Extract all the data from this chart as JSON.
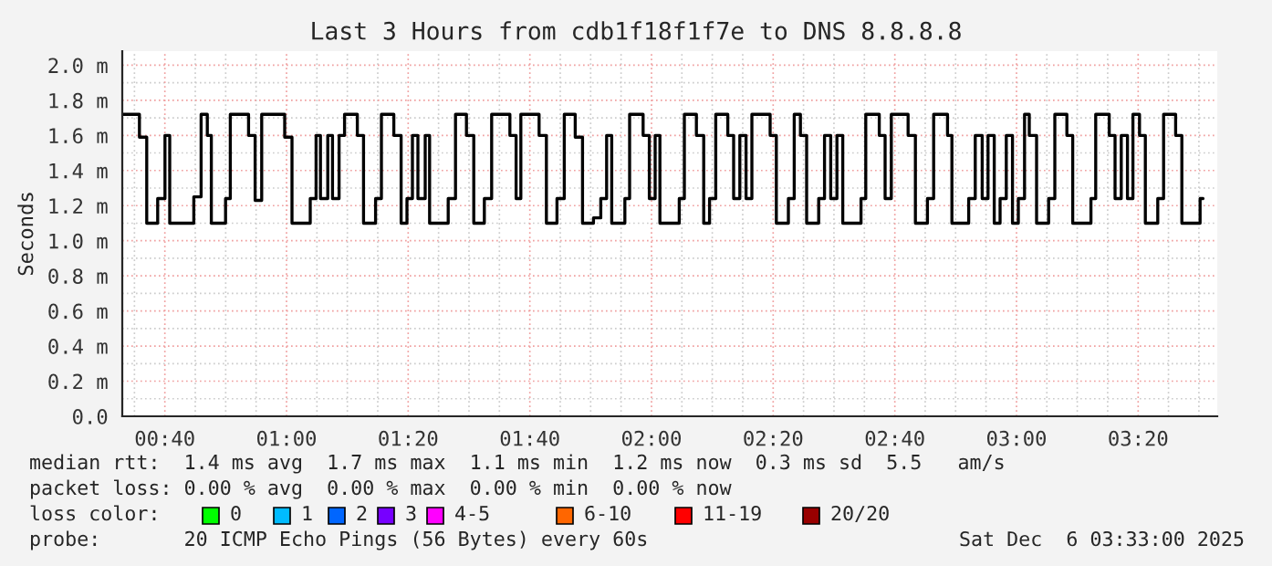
{
  "chart_data": {
    "type": "step",
    "title": "Last 3 Hours from cdb1f18f1f7e to DNS 8.8.8.8",
    "ylabel": "Seconds",
    "x": [
      0.551,
      0.597,
      0.617,
      0.647,
      0.667,
      0.68,
      0.746,
      0.766,
      0.783,
      0.794,
      0.833,
      0.846,
      0.896,
      0.914,
      0.932,
      0.995,
      1.015,
      1.065,
      1.081,
      1.093,
      1.113,
      1.126,
      1.144,
      1.159,
      1.194,
      1.211,
      1.244,
      1.26,
      1.294,
      1.314,
      1.33,
      1.345,
      1.36,
      1.38,
      1.392,
      1.443,
      1.463,
      1.493,
      1.513,
      1.542,
      1.562,
      1.612,
      1.629,
      1.642,
      1.692,
      1.712,
      1.741,
      1.761,
      1.791,
      1.811,
      1.841,
      1.861,
      1.877,
      1.891,
      1.927,
      1.94,
      1.977,
      1.994,
      2.01,
      2.023,
      2.076,
      2.09,
      2.123,
      2.143,
      2.159,
      2.176,
      2.209,
      2.225,
      2.242,
      2.259,
      2.275,
      2.325,
      2.342,
      2.375,
      2.391,
      2.408,
      2.425,
      2.458,
      2.474,
      2.491,
      2.508,
      2.524,
      2.574,
      2.587,
      2.624,
      2.64,
      2.657,
      2.703,
      2.723,
      2.756,
      2.773,
      2.811,
      2.823,
      2.869,
      2.887,
      2.906,
      2.922,
      2.939,
      2.955,
      2.972,
      2.989,
      3.005,
      3.022,
      3.035,
      3.055,
      3.088,
      3.105,
      3.138,
      3.154,
      3.204,
      3.217,
      3.254,
      3.27,
      3.287,
      3.304,
      3.319,
      3.337,
      3.353,
      3.387,
      3.403,
      3.436,
      3.453,
      3.503,
      3.511
    ],
    "series": [
      {
        "color": "#000000",
        "values": [
          1.72,
          1.59,
          1.1,
          1.24,
          1.6,
          1.1,
          1.25,
          1.72,
          1.6,
          1.1,
          1.24,
          1.72,
          1.6,
          1.23,
          1.72,
          1.59,
          1.1,
          1.24,
          1.6,
          1.24,
          1.6,
          1.24,
          1.6,
          1.72,
          1.6,
          1.1,
          1.24,
          1.72,
          1.6,
          1.1,
          1.24,
          1.6,
          1.24,
          1.6,
          1.1,
          1.24,
          1.72,
          1.6,
          1.1,
          1.24,
          1.72,
          1.6,
          1.24,
          1.72,
          1.6,
          1.1,
          1.24,
          1.72,
          1.59,
          1.1,
          1.13,
          1.24,
          1.6,
          1.1,
          1.24,
          1.72,
          1.6,
          1.24,
          1.6,
          1.1,
          1.24,
          1.72,
          1.6,
          1.1,
          1.24,
          1.72,
          1.6,
          1.24,
          1.6,
          1.24,
          1.72,
          1.6,
          1.1,
          1.24,
          1.72,
          1.6,
          1.1,
          1.24,
          1.6,
          1.24,
          1.6,
          1.1,
          1.24,
          1.72,
          1.6,
          1.24,
          1.72,
          1.6,
          1.1,
          1.24,
          1.72,
          1.6,
          1.1,
          1.24,
          1.6,
          1.24,
          1.6,
          1.1,
          1.24,
          1.6,
          1.1,
          1.24,
          1.72,
          1.6,
          1.1,
          1.24,
          1.72,
          1.6,
          1.1,
          1.24,
          1.72,
          1.6,
          1.24,
          1.6,
          1.24,
          1.72,
          1.6,
          1.1,
          1.24,
          1.72,
          1.6,
          1.1,
          1.24,
          1.24
        ]
      }
    ],
    "xlim": [
      0.55,
      3.55
    ],
    "xticks": [
      {
        "value": 0.6667,
        "label": "00:40"
      },
      {
        "value": 1.0,
        "label": "01:00"
      },
      {
        "value": 1.3333,
        "label": "01:20"
      },
      {
        "value": 1.6667,
        "label": "01:40"
      },
      {
        "value": 2.0,
        "label": "02:00"
      },
      {
        "value": 2.3333,
        "label": "02:20"
      },
      {
        "value": 2.6667,
        "label": "02:40"
      },
      {
        "value": 3.0,
        "label": "03:00"
      },
      {
        "value": 3.3333,
        "label": "03:20"
      }
    ],
    "ylim": [
      0,
      2.08
    ],
    "yticks": [
      {
        "value": 0,
        "label": "0.0"
      },
      {
        "value": 0.2,
        "label": "0.2 m"
      },
      {
        "value": 0.4,
        "label": "0.4 m"
      },
      {
        "value": 0.6,
        "label": "0.6 m"
      },
      {
        "value": 0.8,
        "label": "0.8 m"
      },
      {
        "value": 1.0,
        "label": "1.0 m"
      },
      {
        "value": 1.2,
        "label": "1.2 m"
      },
      {
        "value": 1.4,
        "label": "1.4 m"
      },
      {
        "value": 1.6,
        "label": "1.6 m"
      },
      {
        "value": 1.8,
        "label": "1.8 m"
      },
      {
        "value": 2.0,
        "label": "2.0 m"
      }
    ],
    "grid": true,
    "line_style": "solid",
    "annotations": [
      "median rtt:  1.4 ms avg  1.7 ms max  1.1 ms min  1.2 ms now  0.3 ms sd  5.5   am/s",
      "packet loss: 0.00 % avg  0.00 % max  0.00 % min  0.00 % now",
      "loss color:",
      "0",
      "1",
      "2",
      "3",
      "4-5",
      "6-10",
      "11-19",
      "20/20",
      "probe:       20 ICMP Echo Pings (56 Bytes) every 60s",
      "Sat Dec  6 03:33:00 2025"
    ]
  }
}
